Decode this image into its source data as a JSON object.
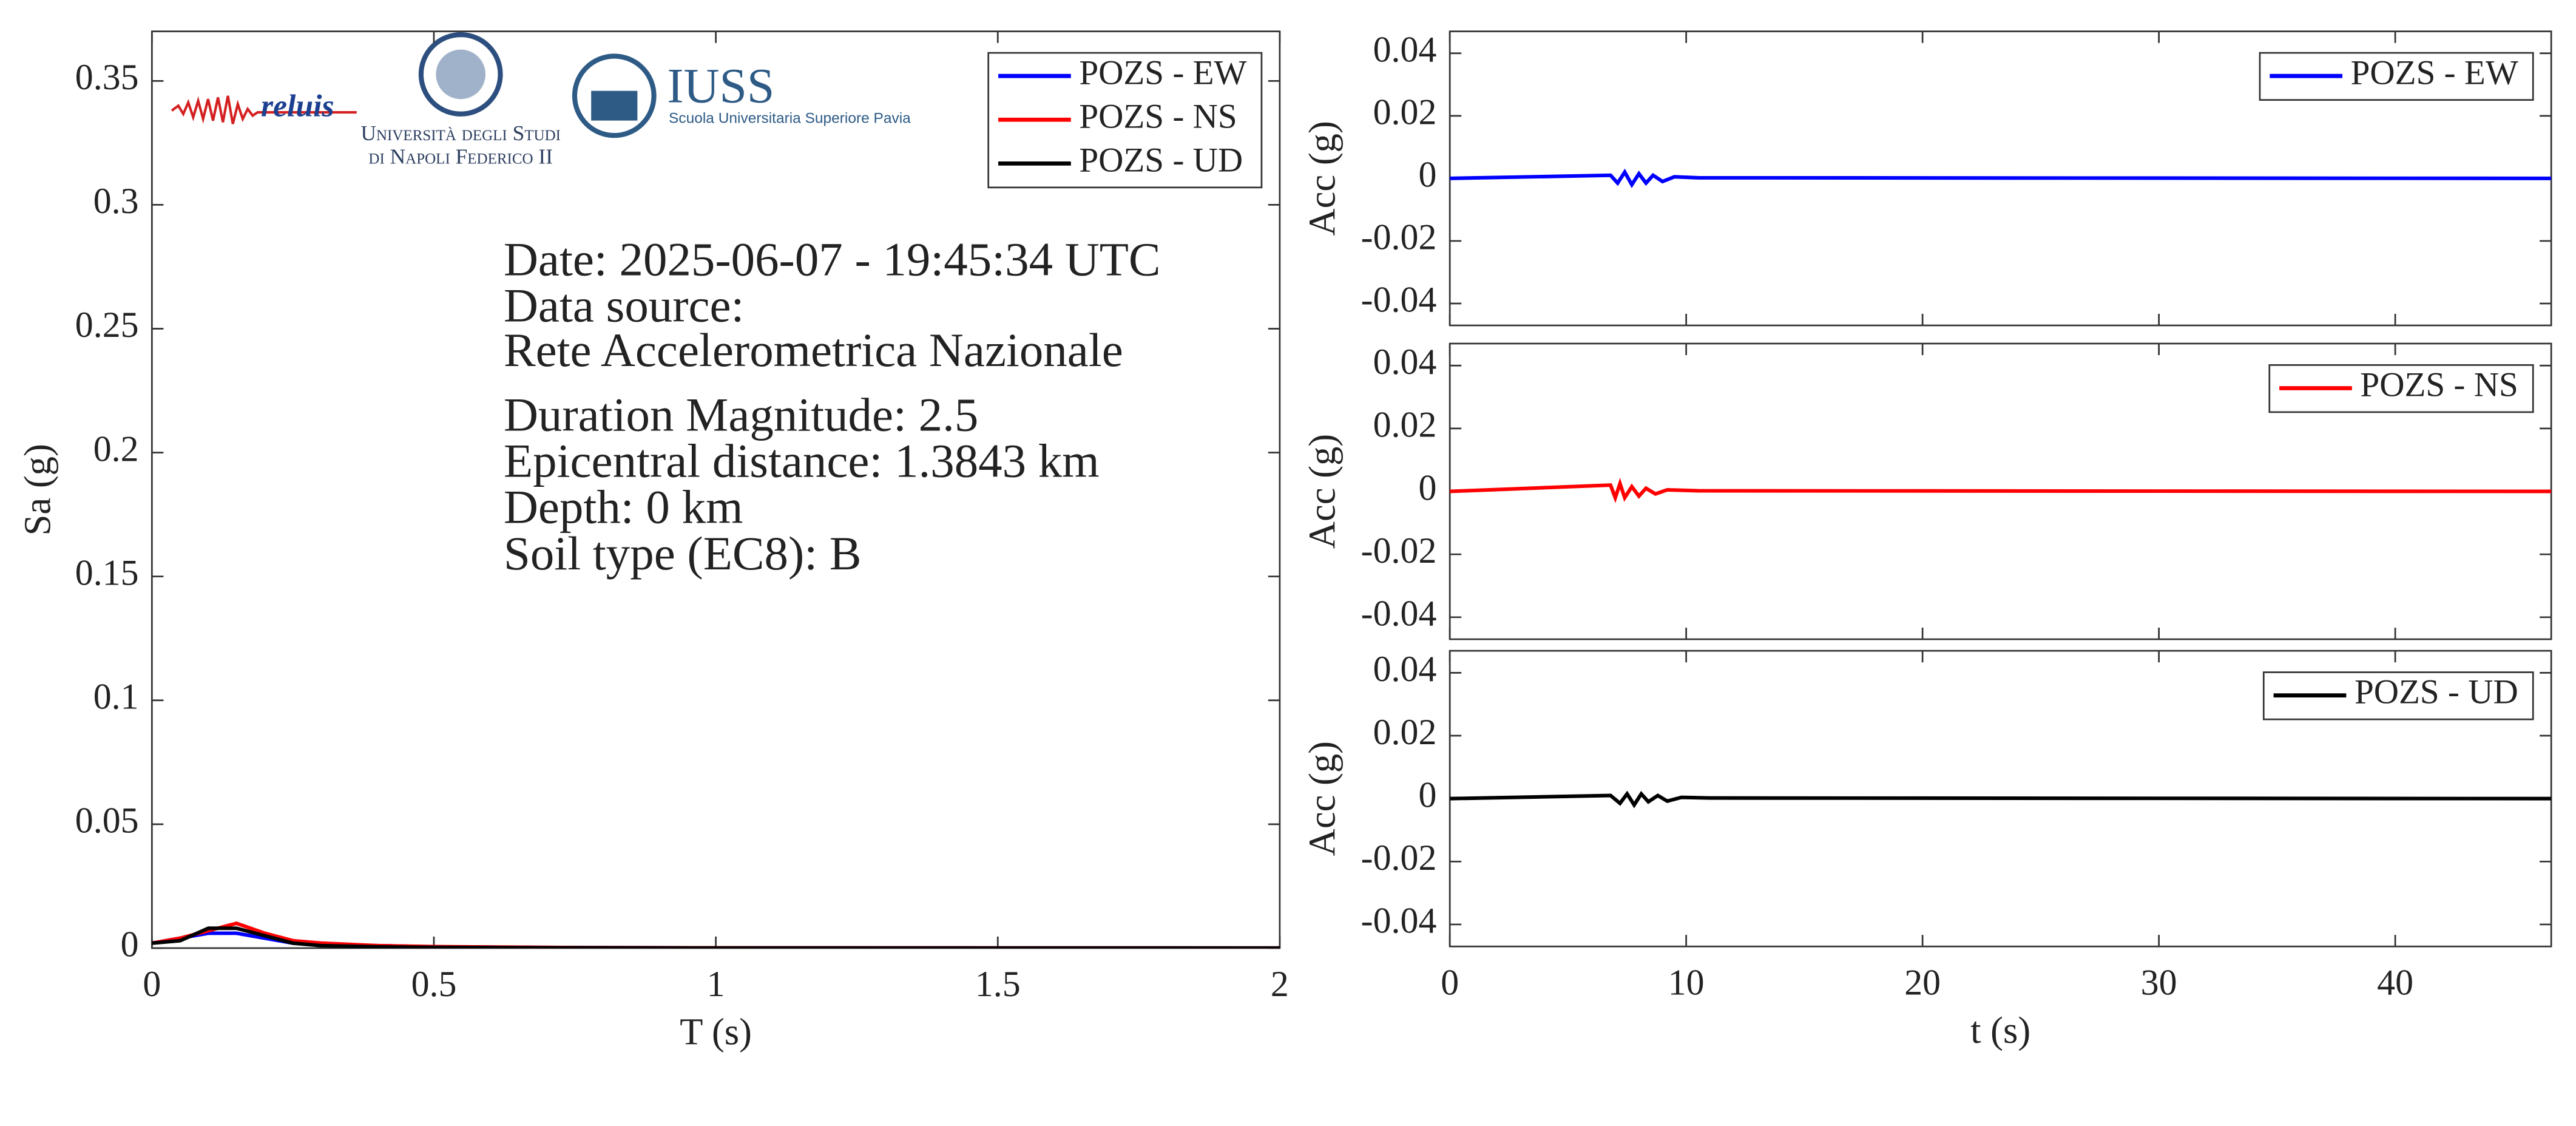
{
  "logos": {
    "reluis": "reluis",
    "napoli_1": "Università degli Studi",
    "napoli_2": "di Napoli Federico II",
    "iuss": "IUSS",
    "iuss_sub": "Scuola Universitaria Superiore Pavia"
  },
  "chart_data": [
    {
      "type": "line",
      "xlabel": "T (s)",
      "ylabel": "Sa (g)",
      "xlim": [
        0,
        2
      ],
      "xticks": [
        0,
        0.5,
        1,
        1.5,
        2
      ],
      "ylim": [
        0,
        0.37
      ],
      "yticks": [
        0,
        0.05,
        0.1,
        0.15,
        0.2,
        0.25,
        0.3,
        0.35
      ],
      "legend": "top-right",
      "show_xticklabels": true,
      "annotations": [
        "Date: 2025-06-07 - 19:45:34 UTC",
        "Data source:",
        "Rete Accelerometrica Nazionale",
        "Duration Magnitude: 2.5",
        "Epicentral distance: 1.3843 km",
        "Depth: 0 km",
        "Soil type (EC8): B"
      ],
      "x": [
        0,
        0.05,
        0.1,
        0.15,
        0.2,
        0.25,
        0.3,
        0.4,
        0.5,
        0.75,
        1,
        1.5,
        2
      ],
      "series": [
        {
          "name": "POZS - EW",
          "color": "#0000ff",
          "values": [
            0.002,
            0.004,
            0.006,
            0.006,
            0.004,
            0.002,
            0.0015,
            0.001,
            0.0005,
            0.0002,
            0.0001,
            5e-05,
            3e-05
          ]
        },
        {
          "name": "POZS - NS",
          "color": "#ff0000",
          "values": [
            0.002,
            0.004,
            0.007,
            0.01,
            0.006,
            0.003,
            0.002,
            0.001,
            0.0006,
            0.0002,
            0.0001,
            5e-05,
            3e-05
          ]
        },
        {
          "name": "POZS - UD",
          "color": "#000000",
          "values": [
            0.002,
            0.003,
            0.008,
            0.008,
            0.005,
            0.002,
            0.001,
            0.0005,
            0.0003,
            0.0001,
            5e-05,
            2e-05,
            1e-05
          ]
        }
      ]
    },
    {
      "type": "line",
      "ylabel": "Acc (g)",
      "xlim": [
        0,
        46.6
      ],
      "xticks": [
        0,
        10,
        20,
        30,
        40
      ],
      "ylim": [
        -0.047,
        0.047
      ],
      "yticks": [
        -0.04,
        -0.02,
        0,
        0.02,
        0.04
      ],
      "legend": "top-right",
      "show_xticklabels": false,
      "x": [
        0,
        6.8,
        7.1,
        7.4,
        7.7,
        8.0,
        8.3,
        8.6,
        9.0,
        9.5,
        10.5,
        46.6
      ],
      "series": [
        {
          "name": "POZS - EW",
          "color": "#0000ff",
          "values": [
            0,
            0.001,
            -0.0015,
            0.002,
            -0.002,
            0.0015,
            -0.0015,
            0.001,
            -0.001,
            0.0005,
            0.0002,
            0
          ]
        }
      ]
    },
    {
      "type": "line",
      "ylabel": "Acc (g)",
      "xlim": [
        0,
        46.6
      ],
      "xticks": [
        0,
        10,
        20,
        30,
        40
      ],
      "ylim": [
        -0.047,
        0.047
      ],
      "yticks": [
        -0.04,
        -0.02,
        0,
        0.02,
        0.04
      ],
      "legend": "top-right",
      "show_xticklabels": false,
      "x": [
        0,
        6.8,
        7.0,
        7.2,
        7.4,
        7.7,
        8.0,
        8.3,
        8.7,
        9.2,
        10.5,
        46.6
      ],
      "series": [
        {
          "name": "POZS - NS",
          "color": "#ff0000",
          "values": [
            0,
            0.002,
            -0.002,
            0.0025,
            -0.002,
            0.0015,
            -0.0015,
            0.001,
            -0.0008,
            0.0005,
            0.0002,
            0
          ]
        }
      ]
    },
    {
      "type": "line",
      "xlabel": "t (s)",
      "ylabel": "Acc (g)",
      "xlim": [
        0,
        46.6
      ],
      "xticks": [
        0,
        10,
        20,
        30,
        40
      ],
      "ylim": [
        -0.047,
        0.047
      ],
      "yticks": [
        -0.04,
        -0.02,
        0,
        0.02,
        0.04
      ],
      "legend": "top-right",
      "show_xticklabels": true,
      "x": [
        0,
        6.8,
        7.2,
        7.5,
        7.8,
        8.1,
        8.4,
        8.8,
        9.2,
        9.8,
        11,
        46.6
      ],
      "series": [
        {
          "name": "POZS - UD",
          "color": "#000000",
          "values": [
            0,
            0.001,
            -0.0015,
            0.0015,
            -0.002,
            0.0015,
            -0.001,
            0.001,
            -0.0008,
            0.0004,
            0.0002,
            0
          ]
        }
      ]
    }
  ]
}
